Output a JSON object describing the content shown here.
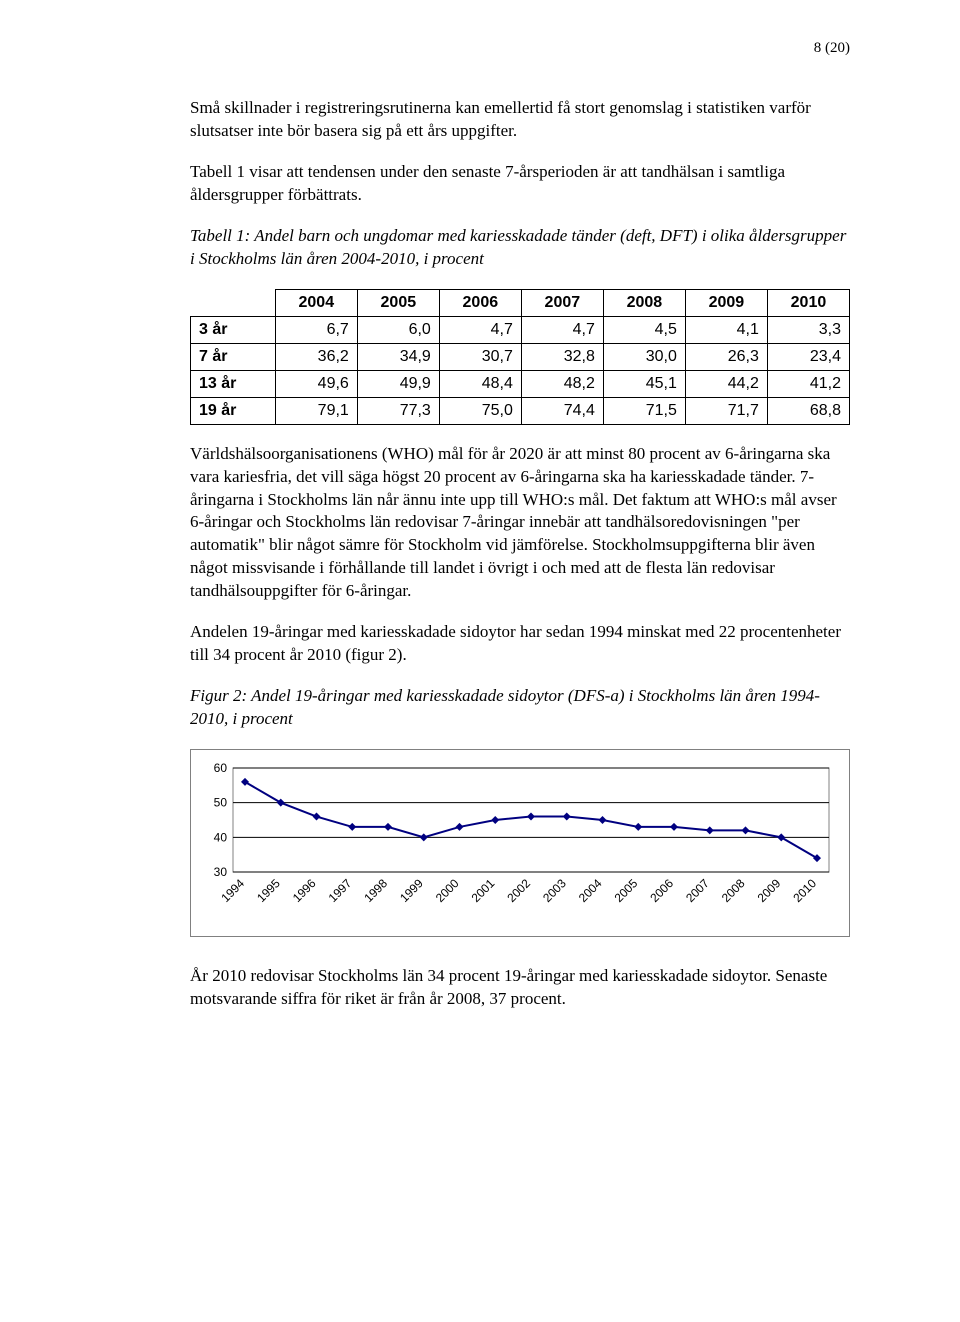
{
  "page_number": "8 (20)",
  "para1": "Små skillnader i registreringsrutinerna kan emellertid få stort genomslag i statistiken varför slutsatser inte bör basera sig på ett års uppgifter.",
  "para2": "Tabell 1 visar att tendensen under den senaste 7-årsperioden är att tandhälsan i samtliga åldersgrupper förbättrats.",
  "table1_caption": "Tabell 1: Andel barn och ungdomar med kariesskadade tänder (deft, DFT) i olika åldersgrupper i Stockholms län åren 2004-2010, i procent",
  "table1": {
    "columns": [
      "2004",
      "2005",
      "2006",
      "2007",
      "2008",
      "2009",
      "2010"
    ],
    "rows": [
      {
        "label": "3 år",
        "cells": [
          "6,7",
          "6,0",
          "4,7",
          "4,7",
          "4,5",
          "4,1",
          "3,3"
        ]
      },
      {
        "label": "7 år",
        "cells": [
          "36,2",
          "34,9",
          "30,7",
          "32,8",
          "30,0",
          "26,3",
          "23,4"
        ]
      },
      {
        "label": "13 år",
        "cells": [
          "49,6",
          "49,9",
          "48,4",
          "48,2",
          "45,1",
          "44,2",
          "41,2"
        ]
      },
      {
        "label": "19 år",
        "cells": [
          "79,1",
          "77,3",
          "75,0",
          "74,4",
          "71,5",
          "71,7",
          "68,8"
        ]
      }
    ]
  },
  "para3": "Världshälsoorganisationens (WHO) mål för år 2020 är att minst 80 procent av 6-åringarna ska vara kariesfria, det vill säga högst 20 procent av 6-åringarna ska ha kariesskadade tänder. 7-åringarna i Stockholms län når ännu inte upp till WHO:s mål. Det faktum att WHO:s mål avser 6-åringar och Stockholms län redovisar 7-åringar innebär att tandhälsoredovisningen \"per automatik\" blir något sämre för Stockholm vid jämförelse. Stockholmsuppgifterna blir även något missvisande i förhållande till landet i övrigt i och med att de flesta län redovisar tandhälsouppgifter för 6-åringar.",
  "para4": "Andelen 19-åringar med kariesskadade sidoytor har sedan 1994 minskat med 22 procentenheter till 34 procent år 2010 (figur 2).",
  "figure2_caption": "Figur 2: Andel 19-åringar med kariesskadade sidoytor (DFS-a) i Stockholms län åren 1994-2010, i procent",
  "chart": {
    "type": "line",
    "x_labels": [
      "1994",
      "1995",
      "1996",
      "1997",
      "1998",
      "1999",
      "2000",
      "2001",
      "2002",
      "2003",
      "2004",
      "2005",
      "2006",
      "2007",
      "2008",
      "2009",
      "2010"
    ],
    "y_ticks": [
      30,
      40,
      50,
      60
    ],
    "ylim": [
      30,
      60
    ],
    "values": [
      56,
      50,
      46,
      43,
      43,
      40,
      43,
      45,
      46,
      46,
      45,
      43,
      43,
      42,
      42,
      40,
      34
    ],
    "line_color": "#000080",
    "marker_color": "#000080",
    "marker_size": 4,
    "line_width": 2,
    "grid_color": "#000000",
    "background_color": "#ffffff",
    "plot_border_color": "#808080",
    "tick_fontsize": 12,
    "tick_fontfamily": "Arial"
  },
  "para5": "År 2010 redovisar Stockholms län 34 procent 19-åringar med kariesskadade sidoytor. Senaste motsvarande siffra för riket är från år 2008, 37 procent."
}
